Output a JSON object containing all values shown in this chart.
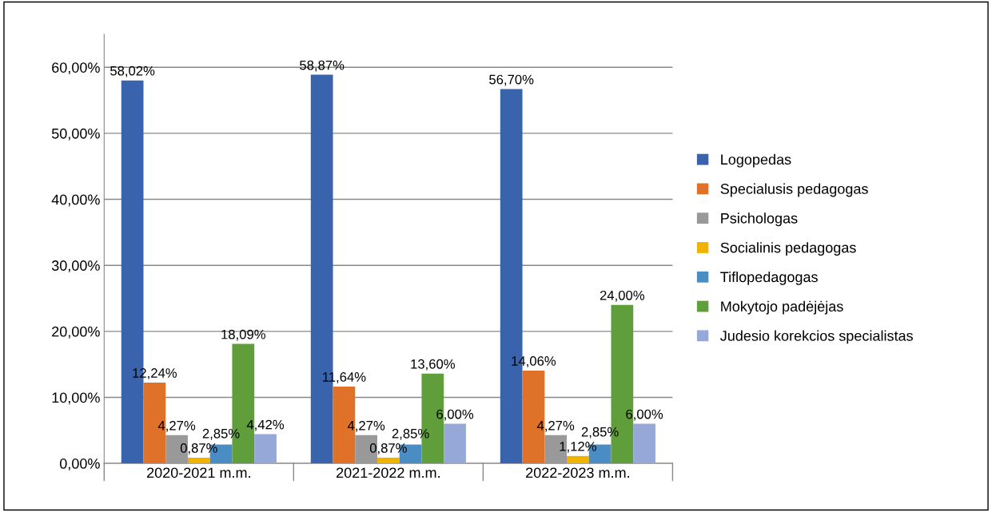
{
  "chart_data": {
    "type": "bar",
    "categories": [
      "2020-2021 m.m.",
      "2021-2022 m.m.",
      "2022-2023 m.m."
    ],
    "series": [
      {
        "name": "Logopedas",
        "color": "#3a63ad",
        "values": [
          58.02,
          58.87,
          56.7
        ],
        "value_labels": [
          "58,02%",
          "58,87%",
          "56,70%"
        ]
      },
      {
        "name": "Specialusis pedagogas",
        "color": "#e07128",
        "values": [
          12.24,
          11.64,
          14.06
        ],
        "value_labels": [
          "12,24%",
          "11,64%",
          "14,06%"
        ]
      },
      {
        "name": "Psichologas",
        "color": "#999999",
        "values": [
          4.27,
          4.27,
          4.27
        ],
        "value_labels": [
          "4,27%",
          "4,27%",
          "4,27%"
        ]
      },
      {
        "name": "Socialinis pedagogas",
        "color": "#f0b400",
        "values": [
          0.87,
          0.87,
          1.12
        ],
        "value_labels": [
          "0,87%",
          "0,87%",
          "1,12%"
        ]
      },
      {
        "name": "Tiflopedagogas",
        "color": "#4a8cc4",
        "values": [
          2.85,
          2.85,
          2.85
        ],
        "value_labels": [
          "2,85%",
          "2,85%",
          "2,85%"
        ]
      },
      {
        "name": "Mokytojo padėjėjas",
        "color": "#5f9e3a",
        "values": [
          18.09,
          13.6,
          24.0
        ],
        "value_labels": [
          "18,09%",
          "13,60%",
          "24,00%"
        ]
      },
      {
        "name": "Judesio korekcios specialistas",
        "color": "#95a8d8",
        "values": [
          4.42,
          6.0,
          6.0
        ],
        "value_labels": [
          "4,42%",
          "6,00%",
          "6,00%"
        ]
      }
    ],
    "ylim": [
      0,
      65
    ],
    "yticks": [
      {
        "value": 0,
        "label": "0,00%"
      },
      {
        "value": 10,
        "label": "10,00%"
      },
      {
        "value": 20,
        "label": "20,00%"
      },
      {
        "value": 30,
        "label": "30,00%"
      },
      {
        "value": 40,
        "label": "40,00%"
      },
      {
        "value": 50,
        "label": "50,00%"
      },
      {
        "value": 60,
        "label": "60,00%"
      }
    ],
    "grid": "y",
    "legend": "right"
  }
}
